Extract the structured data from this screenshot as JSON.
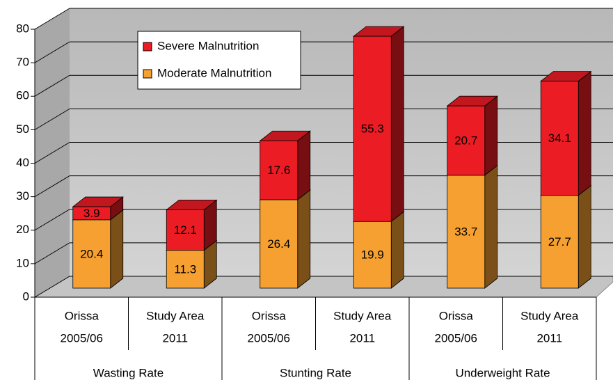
{
  "chart_data": {
    "type": "bar",
    "stacked": true,
    "categories": [
      [
        "Orissa",
        "2005/06"
      ],
      [
        "Study Area",
        "2011"
      ],
      [
        "Orissa",
        "2005/06"
      ],
      [
        "Study Area",
        "2011"
      ],
      [
        "Orissa",
        "2005/06"
      ],
      [
        "Study Area",
        "2011"
      ]
    ],
    "groups": [
      "Wasting Rate",
      "Stunting Rate",
      "Underweight Rate"
    ],
    "series": [
      {
        "name": "Moderate Malnutrition",
        "color": "#f5a030",
        "values": [
          20.4,
          11.3,
          26.4,
          19.9,
          33.7,
          27.7
        ]
      },
      {
        "name": "Severe Malnutrition",
        "color": "#ec1c24",
        "values": [
          3.9,
          12.1,
          17.6,
          55.3,
          20.7,
          34.1
        ]
      }
    ],
    "ylim": [
      0,
      80
    ],
    "yticks": [
      0,
      10,
      20,
      30,
      40,
      50,
      60,
      70,
      80
    ],
    "grid": true,
    "legend": "top-left"
  }
}
